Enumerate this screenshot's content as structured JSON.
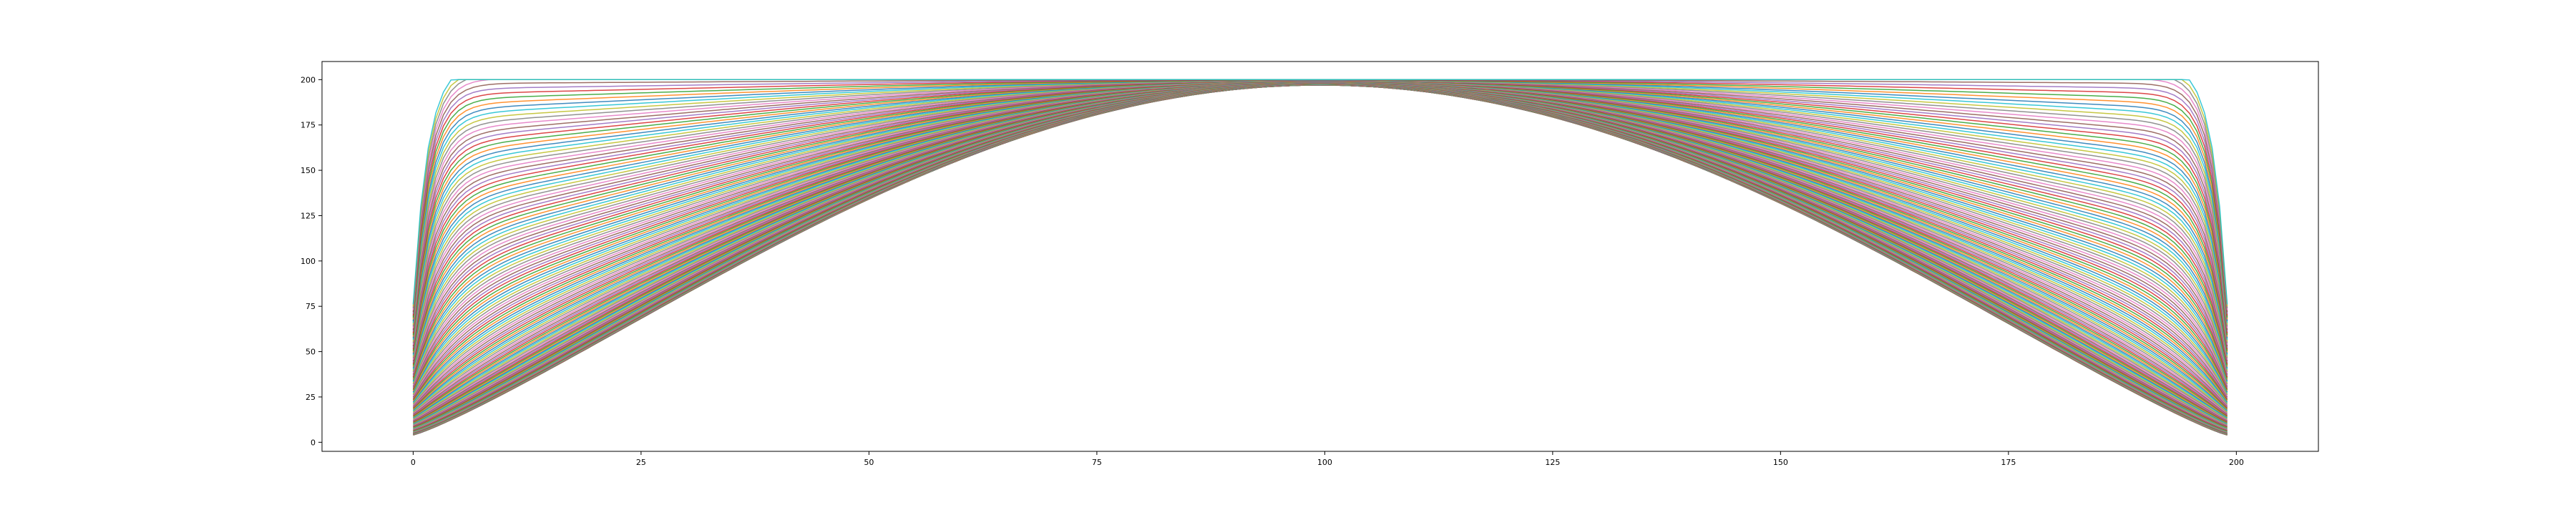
{
  "chart_data": {
    "type": "line",
    "title": "",
    "xlabel": "",
    "ylabel": "",
    "xlim": [
      -10,
      209
    ],
    "ylim": [
      -5,
      210
    ],
    "xticks": [
      0,
      25,
      50,
      75,
      100,
      125,
      150,
      175,
      200
    ],
    "yticks": [
      0,
      25,
      50,
      75,
      100,
      125,
      150,
      175,
      200
    ],
    "xtick_labels": [
      "0",
      "25",
      "50",
      "75",
      "100",
      "125",
      "150",
      "175",
      "200"
    ],
    "ytick_labels": [
      "0",
      "25",
      "50",
      "75",
      "100",
      "125",
      "150",
      "175",
      "200"
    ],
    "grid": false,
    "legend": "none",
    "x_domain": [
      0,
      199
    ],
    "boundary_value": 200,
    "peak_value": 197,
    "bottom_value": 4,
    "series_count": 150,
    "series_colors": [
      "#1f77b4",
      "#ff7f0e",
      "#2ca02c",
      "#d62728",
      "#9467bd",
      "#8c564b",
      "#e377c2",
      "#7f7f7f",
      "#bcbd22",
      "#17becf"
    ],
    "description_of_family": "Overlapping family of curves from y=200 flat down to a bell-shaped lowest curve peaking near 197 at x=100 and falling to about 4 at x=0 and x=199"
  }
}
